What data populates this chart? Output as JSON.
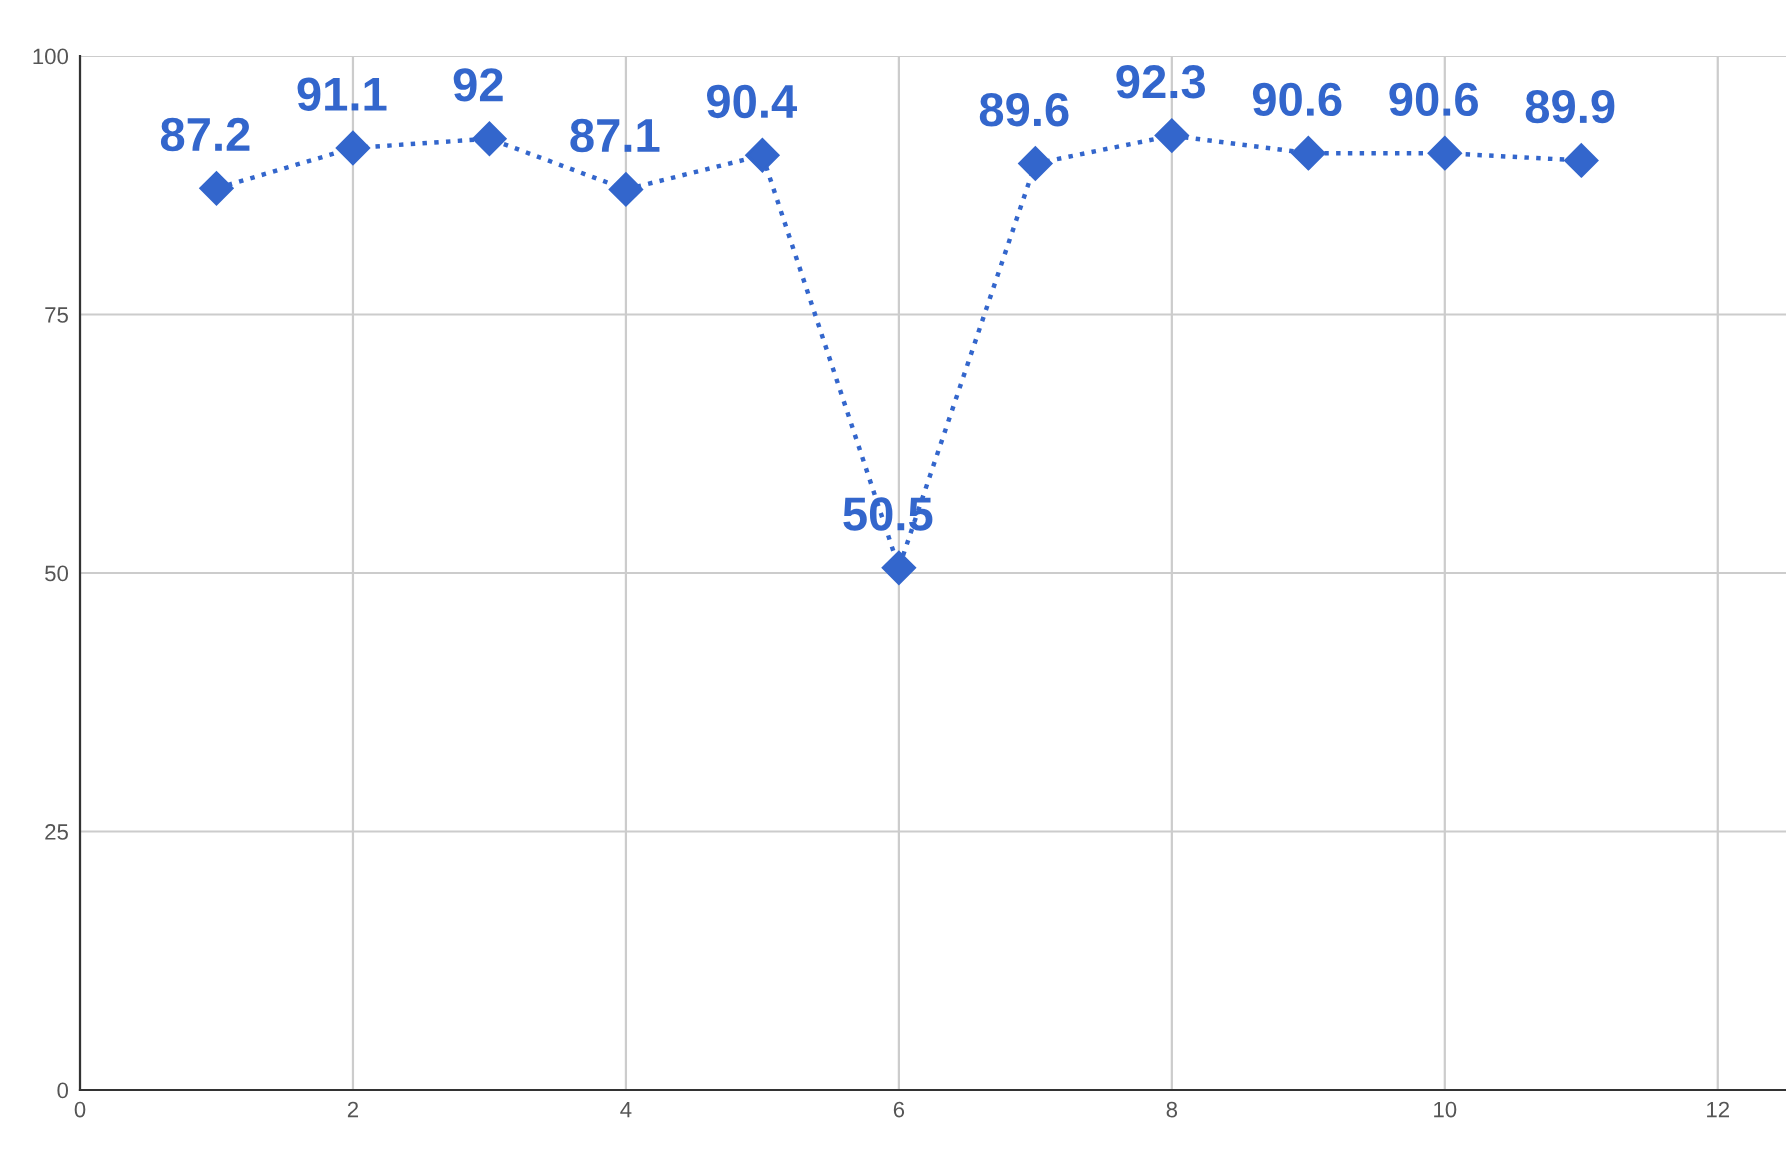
{
  "chart_data": {
    "type": "line",
    "x": [
      1,
      2,
      3,
      4,
      5,
      6,
      7,
      8,
      9,
      10,
      11
    ],
    "series": [
      {
        "color": "#3366cc",
        "values": [
          87.2,
          91.1,
          92,
          87.1,
          90.4,
          50.5,
          89.6,
          92.3,
          90.6,
          90.6,
          89.9
        ]
      }
    ],
    "xlim": [
      0,
      12.5
    ],
    "xticks": [
      0,
      2,
      4,
      6,
      8,
      10,
      12
    ],
    "ylim": [
      0,
      100
    ],
    "yticks": [
      0,
      25,
      50,
      75,
      100
    ],
    "grid": true,
    "marker": "diamond",
    "line_style": "dotted",
    "data_labels": true
  }
}
